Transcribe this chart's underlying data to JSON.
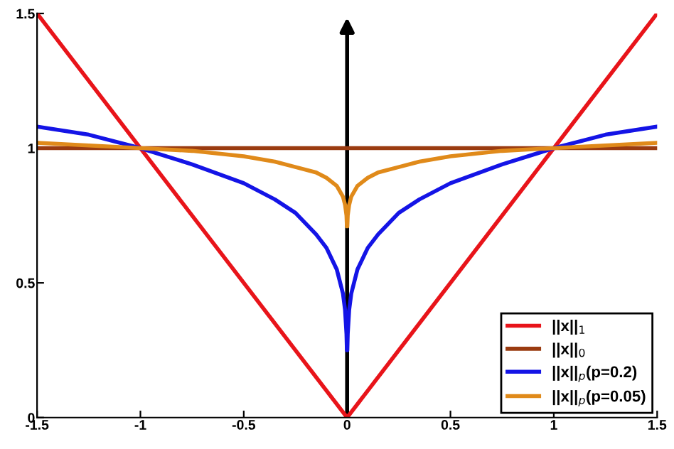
{
  "chart_data": {
    "type": "line",
    "xlim": [
      -1.5,
      1.5
    ],
    "ylim": [
      0,
      1.5
    ],
    "xticks": [
      -1.5,
      -1,
      -0.5,
      0,
      0.5,
      1,
      1.5
    ],
    "yticks": [
      0,
      0.5,
      1,
      1.5
    ],
    "grid": false,
    "legend": "bottom right",
    "line_style": "solid",
    "marker": "none",
    "series": [
      {
        "name": "||x||$_{1}$",
        "color": "#e8141a",
        "x": [
          -1.5,
          0,
          1.5
        ],
        "values": [
          1.5,
          0,
          1.5
        ]
      },
      {
        "name": "||x||$_{0}$",
        "color": "#9a3b10",
        "x": [
          -1.5,
          1.5
        ],
        "values": [
          1,
          1
        ]
      },
      {
        "name": "||x||$_{p}$(p=0.2)",
        "color": "#1414e6",
        "x": [
          -1.5,
          -1.25,
          -1,
          -0.75,
          -0.5,
          -0.35,
          -0.25,
          -0.15,
          -0.1,
          -0.05,
          -0.02,
          -0.01,
          -0.003,
          -0.001,
          0.001,
          0.003,
          0.01,
          0.02,
          0.05,
          0.1,
          0.15,
          0.25,
          0.35,
          0.5,
          0.75,
          1,
          1.25,
          1.5
        ],
        "values": [
          1.08,
          1.05,
          1,
          0.94,
          0.87,
          0.81,
          0.76,
          0.68,
          0.63,
          0.55,
          0.46,
          0.4,
          0.31,
          0.25,
          0.25,
          0.31,
          0.4,
          0.46,
          0.55,
          0.63,
          0.68,
          0.76,
          0.81,
          0.87,
          0.94,
          1,
          1.05,
          1.08
        ]
      },
      {
        "name": "||x||$_{p}$(p=0.05)",
        "color": "#e08a1a",
        "x": [
          -1.5,
          -1.25,
          -1,
          -0.75,
          -0.5,
          -0.35,
          -0.25,
          -0.15,
          -0.1,
          -0.05,
          -0.02,
          -0.01,
          -0.003,
          -0.001,
          0.001,
          0.003,
          0.01,
          0.02,
          0.05,
          0.1,
          0.15,
          0.25,
          0.35,
          0.5,
          0.75,
          1,
          1.25,
          1.5
        ],
        "values": [
          1.02,
          1.01,
          1,
          0.99,
          0.97,
          0.95,
          0.93,
          0.91,
          0.89,
          0.86,
          0.82,
          0.79,
          0.75,
          0.71,
          0.71,
          0.75,
          0.79,
          0.82,
          0.86,
          0.89,
          0.91,
          0.93,
          0.95,
          0.97,
          0.99,
          1,
          1.01,
          1.02
        ]
      }
    ]
  }
}
